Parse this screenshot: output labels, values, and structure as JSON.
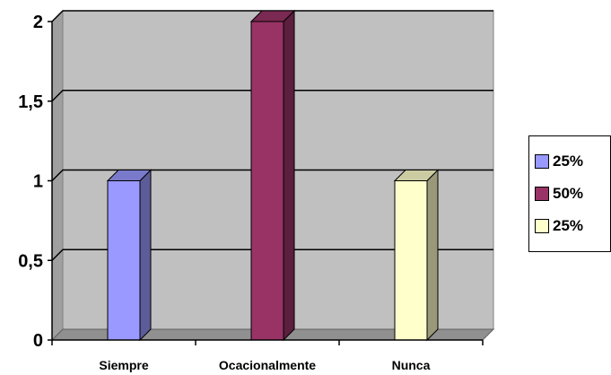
{
  "chart_data": {
    "type": "bar",
    "categories": [
      "Siempre",
      "Ocacionalmente",
      "Nunca"
    ],
    "values": [
      1,
      2,
      1
    ],
    "ylim": [
      0,
      2
    ],
    "yticks": [
      "0",
      "0,5",
      "1",
      "1,5",
      "2"
    ],
    "grid": true,
    "colors": [
      "#9999FF",
      "#993366",
      "#FFFFCC"
    ],
    "legend_position": "right",
    "legend": [
      {
        "label": "25%",
        "color": "#9999FF"
      },
      {
        "label": "50%",
        "color": "#993366"
      },
      {
        "label": "25%",
        "color": "#FFFFCC"
      }
    ],
    "title": "",
    "xlabel": "",
    "ylabel": ""
  }
}
